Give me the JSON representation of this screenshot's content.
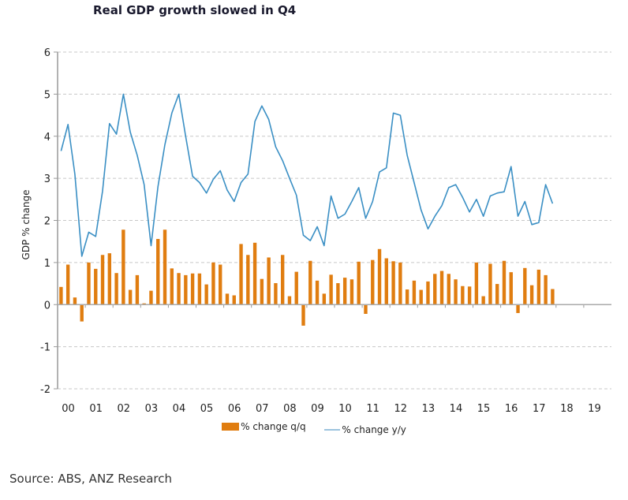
{
  "chart_data": {
    "type": "bar+line",
    "title": "Real GDP growth slowed in Q4",
    "ylabel": "GDP % change",
    "xlabel": "",
    "ylim": [
      -2,
      6
    ],
    "yticks": [
      -2,
      -1,
      0,
      1,
      2,
      3,
      4,
      5,
      6
    ],
    "xticks": [
      "00",
      "01",
      "02",
      "03",
      "04",
      "05",
      "06",
      "07",
      "08",
      "09",
      "10",
      "11",
      "12",
      "13",
      "14",
      "15",
      "16",
      "17",
      "18",
      "19"
    ],
    "grid": true,
    "legend_position": "bottom",
    "x_start": "2000Q1",
    "frequency": "quarterly",
    "colors": {
      "bar": "#E07D10",
      "line": "#3A8FC4",
      "legend_line": "#9BC3DE"
    },
    "series": [
      {
        "name": "% change q/q",
        "type": "bar",
        "values": [
          0.42,
          0.95,
          0.17,
          -0.4,
          1.0,
          0.85,
          1.18,
          1.22,
          0.75,
          1.78,
          0.35,
          0.7,
          0.03,
          0.33,
          1.56,
          1.78,
          0.86,
          0.75,
          0.7,
          0.74,
          0.74,
          0.48,
          1.0,
          0.95,
          0.26,
          0.22,
          1.44,
          1.18,
          1.47,
          0.61,
          1.12,
          0.51,
          1.18,
          0.2,
          0.78,
          -0.5,
          1.04,
          0.57,
          0.26,
          0.71,
          0.51,
          0.64,
          0.6,
          1.02,
          -0.22,
          1.06,
          1.32,
          1.1,
          1.03,
          1.0,
          0.36,
          0.57,
          0.35,
          0.55,
          0.73,
          0.8,
          0.73,
          0.6,
          0.44,
          0.43,
          1.0,
          0.2,
          0.97,
          0.49,
          1.04,
          0.77,
          -0.2,
          0.87,
          0.46,
          0.83,
          0.7,
          0.37
        ]
      },
      {
        "name": "% change y/y",
        "type": "line",
        "values": [
          3.65,
          4.28,
          3.1,
          1.15,
          1.72,
          1.62,
          2.7,
          4.3,
          4.05,
          5.0,
          4.1,
          3.55,
          2.85,
          1.4,
          2.8,
          3.8,
          4.55,
          5.0,
          4.0,
          3.05,
          2.9,
          2.65,
          2.98,
          3.18,
          2.72,
          2.45,
          2.9,
          3.1,
          4.35,
          4.72,
          4.4,
          3.75,
          3.42,
          3.0,
          2.6,
          1.65,
          1.52,
          1.85,
          1.4,
          2.58,
          2.05,
          2.15,
          2.45,
          2.78,
          2.05,
          2.45,
          3.15,
          3.25,
          4.55,
          4.5,
          3.55,
          2.9,
          2.25,
          1.8,
          2.1,
          2.35,
          2.78,
          2.85,
          2.55,
          2.2,
          2.5,
          2.1,
          2.58,
          2.65,
          2.68,
          3.28,
          2.1,
          2.45,
          1.9,
          1.95,
          2.85,
          2.4
        ]
      }
    ]
  },
  "legend": {
    "bar_label": "% change q/q",
    "line_label": "% change y/y"
  },
  "source": "Source: ABS, ANZ Research"
}
